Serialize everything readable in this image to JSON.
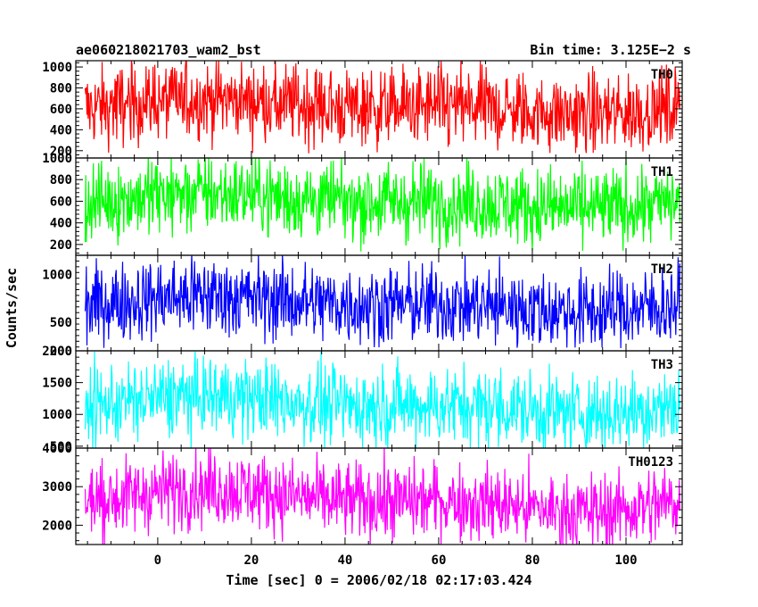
{
  "chart_data": {
    "type": "line",
    "title": "ae060218021703_wam2_bst",
    "bin_time": "Bin time: 3.125E−2 s",
    "xlabel": "Time [sec] 0 = 2006/02/18 02:17:03.424",
    "ylabel": "Counts/sec",
    "xlim": [
      -17.5,
      112
    ],
    "x_range": [
      -15.5,
      111.5
    ],
    "xticks": [
      0,
      20,
      40,
      60,
      80,
      100
    ],
    "xtick_labels": [
      "0",
      "20",
      "40",
      "60",
      "80",
      "100"
    ],
    "bin_time_sec": 0.03125,
    "grid": false,
    "panels": [
      {
        "name": "TH0",
        "color": "#ff0000",
        "ylim": [
          130,
          1060
        ],
        "yticks": [
          200,
          400,
          600,
          800,
          1000
        ],
        "ytick_labels": [
          "200",
          "400",
          "600",
          "800",
          "1000"
        ],
        "baseline": 620,
        "spread": 340,
        "typical_min": 220,
        "typical_max": 1000
      },
      {
        "name": "TH1",
        "color": "#00ff00",
        "ylim": [
          100,
          1000
        ],
        "yticks": [
          200,
          400,
          600,
          800,
          1000
        ],
        "ytick_labels": [
          "200",
          "400",
          "600",
          "800",
          "1000"
        ],
        "baseline": 600,
        "spread": 330,
        "typical_min": 180,
        "typical_max": 980
      },
      {
        "name": "TH2",
        "color": "#0000ff",
        "ylim": [
          200,
          1200
        ],
        "yticks": [
          200,
          500,
          1000
        ],
        "ytick_labels": [
          "200",
          "500",
          "1000"
        ],
        "baseline": 690,
        "spread": 380,
        "typical_min": 280,
        "typical_max": 1150
      },
      {
        "name": "TH3",
        "color": "#00ffff",
        "ylim": [
          470,
          2000
        ],
        "yticks": [
          500,
          1000,
          1500,
          2000
        ],
        "ytick_labels": [
          "500",
          "1000",
          "1500",
          "2000"
        ],
        "baseline": 1150,
        "spread": 560,
        "typical_min": 520,
        "typical_max": 1900
      },
      {
        "name": "TH0123",
        "color": "#ff00ff",
        "ylim": [
          1500,
          4000
        ],
        "yticks": [
          2000,
          3000,
          4000
        ],
        "ytick_labels": [
          "2000",
          "3000",
          "4000"
        ],
        "baseline": 2650,
        "spread": 900,
        "typical_min": 1600,
        "typical_max": 3900
      }
    ]
  }
}
